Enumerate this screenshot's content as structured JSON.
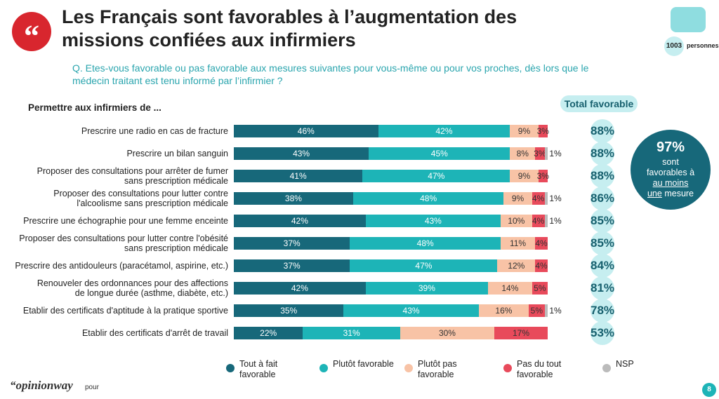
{
  "header": {
    "title": "Les Français sont favorables à l’augmentation des missions confiées aux infirmiers",
    "question": "Q. Etes-vous favorable ou pas favorable aux mesures suivantes pour vous-même ou pour vos proches, dès lors que le médecin traitant est tenu informé par l’infirmier ?",
    "sample_size": "1003",
    "sample_unit": "personnes"
  },
  "chart_data": {
    "type": "bar",
    "orientation": "horizontal",
    "stacked": true,
    "axis_label": "Permettre aux infirmiers de ...",
    "categories": [
      "Prescrire une radio en cas de fracture",
      "Prescrire un bilan sanguin",
      "Proposer des consultations pour arrêter de fumer\nsans prescription médicale",
      "Proposer des consultations pour lutter contre\nl'alcoolisme sans prescription médicale",
      "Prescrire une échographie pour une femme enceinte",
      "Proposer des consultations pour lutter contre l'obésité\nsans prescription médicale",
      "Prescrire des antidouleurs (paracétamol, aspirine, etc.)",
      "Renouveler des ordonnances pour des affections\nde longue durée (asthme, diabète, etc.)",
      "Etablir des certificats d'aptitude à la pratique sportive",
      "Etablir des certificats d'arrêt de travail"
    ],
    "xlim": [
      0,
      100
    ],
    "series": [
      {
        "name": "Tout à fait favorable",
        "color": "#17687a",
        "label_color": "#ffffff",
        "values": [
          46,
          43,
          41,
          38,
          42,
          37,
          37,
          42,
          35,
          22
        ],
        "value_labels": [
          "46%",
          "43%",
          "41%",
          "38%",
          "42%",
          "37%",
          "37%",
          "42%",
          "35%",
          "22%"
        ]
      },
      {
        "name": "Plutôt favorable",
        "color": "#1db4b7",
        "label_color": "#ffffff",
        "values": [
          42,
          45,
          47,
          48,
          43,
          48,
          47,
          39,
          43,
          31
        ],
        "value_labels": [
          "42%",
          "45%",
          "47%",
          "48%",
          "43%",
          "48%",
          "47%",
          "39%",
          "43%",
          "31%"
        ]
      },
      {
        "name": "Plutôt pas favorable",
        "color": "#f8c3a6",
        "label_color": "#333333",
        "values": [
          9,
          8,
          9,
          9,
          10,
          11,
          12,
          14,
          16,
          30
        ],
        "value_labels": [
          "9%",
          "8%",
          "9%",
          "9%",
          "10%",
          "11%",
          "12%",
          "14%",
          "16%",
          "30%"
        ]
      },
      {
        "name": "Pas du tout favorable",
        "color": "#e84a5b",
        "label_color": "#333333",
        "values": [
          3,
          3,
          3,
          4,
          4,
          4,
          4,
          5,
          5,
          17
        ],
        "value_labels": [
          "3%",
          "3%",
          "3%",
          "4%",
          "4%",
          "4%",
          "4%",
          "5%",
          "5%",
          "17%"
        ]
      },
      {
        "name": "NSP",
        "color": "#bbbbbb",
        "label_color": "#222222",
        "label_outside": true,
        "values": [
          null,
          1,
          null,
          1,
          1,
          null,
          null,
          null,
          1,
          null
        ],
        "value_labels": [
          null,
          "1%",
          null,
          "1%",
          "1%",
          null,
          null,
          null,
          "1%",
          null
        ]
      }
    ],
    "totals": {
      "name": "Total favorable",
      "values": [
        88,
        88,
        88,
        86,
        85,
        85,
        84,
        81,
        78,
        53
      ],
      "value_labels": [
        "88%",
        "88%",
        "88%",
        "86%",
        "85%",
        "85%",
        "84%",
        "81%",
        "78%",
        "53%"
      ]
    },
    "callout": {
      "label": "97%",
      "text_before": "sont favorables à",
      "text_underlined": "au moins une",
      "text_after": "mesure"
    }
  },
  "footer": {
    "brand": "“opinionway",
    "for": "pour",
    "page": "8"
  }
}
